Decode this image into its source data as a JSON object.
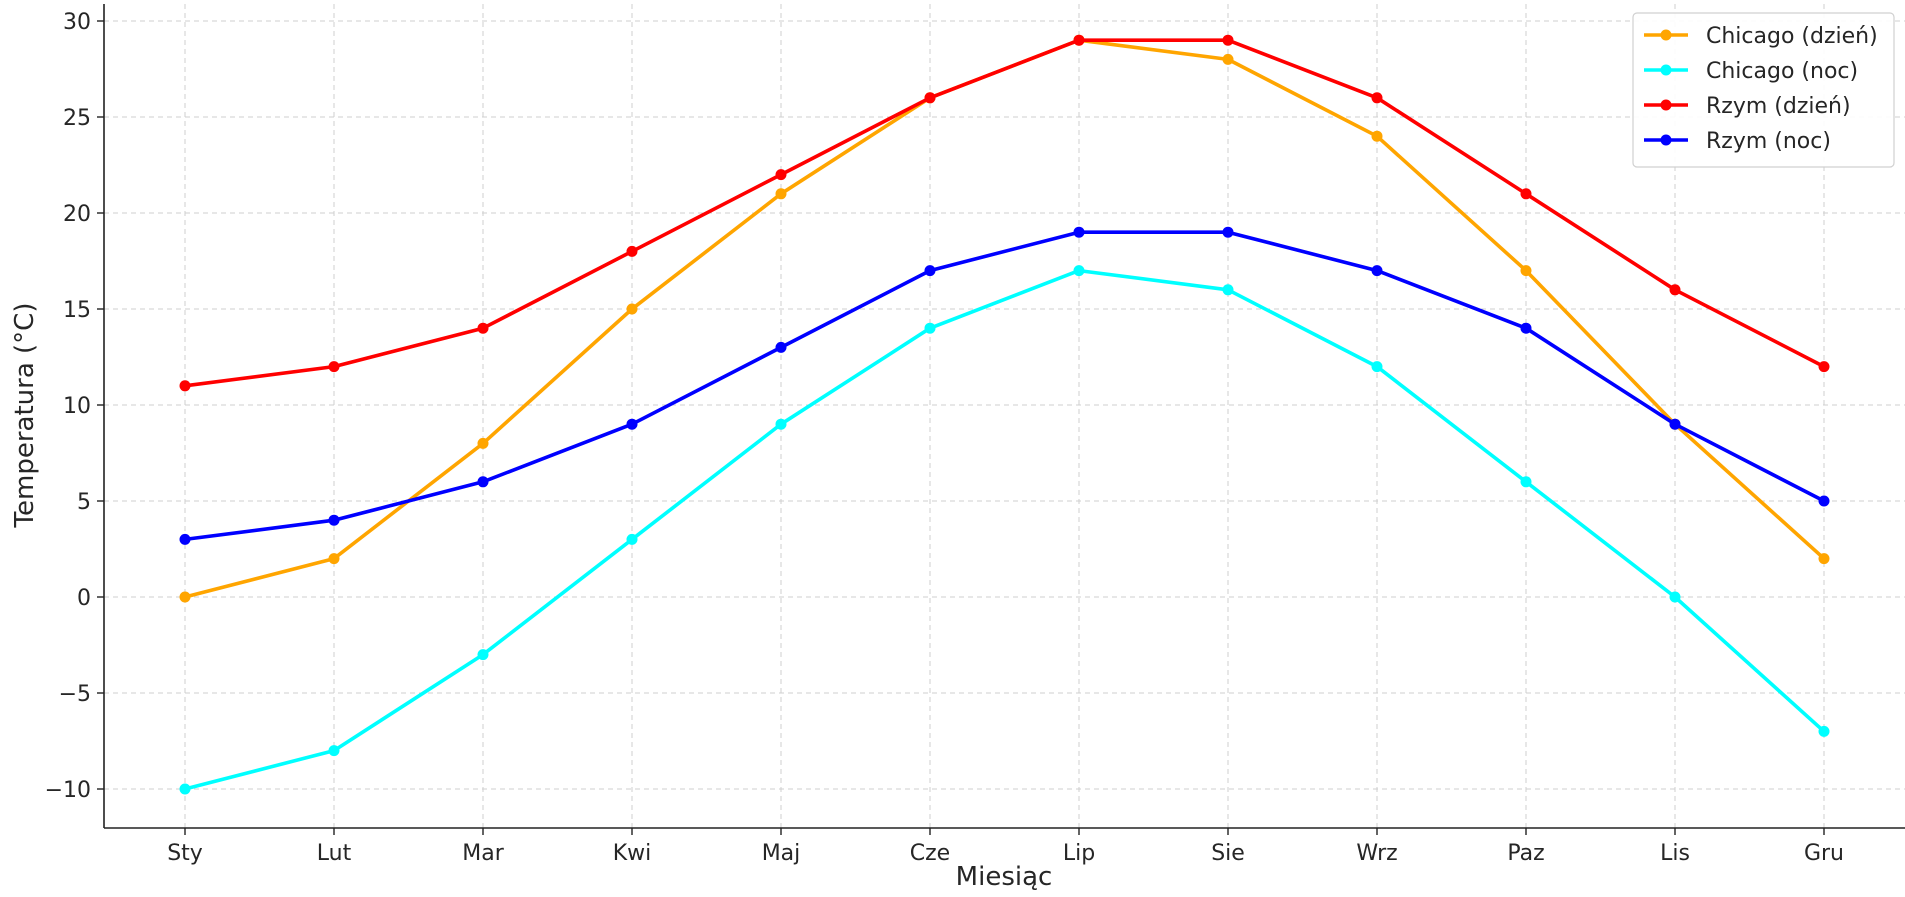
{
  "chart_data": {
    "type": "line",
    "title": "",
    "xlabel": "Miesiąc",
    "ylabel": "Temperatura (°C)",
    "categories": [
      "Sty",
      "Lut",
      "Mar",
      "Kwi",
      "Maj",
      "Cze",
      "Lip",
      "Sie",
      "Wrz",
      "Paz",
      "Lis",
      "Gru"
    ],
    "ylim": [
      -12,
      31
    ],
    "yticks": [
      -10,
      -5,
      0,
      5,
      10,
      15,
      20,
      25,
      30
    ],
    "ytick_labels": [
      "−10",
      "−5",
      "0",
      "5",
      "10",
      "15",
      "20",
      "25",
      "30"
    ],
    "grid": true,
    "legend_position": "top-right",
    "series": [
      {
        "name": "Chicago (dzień)",
        "color": "#ffa500",
        "values": [
          0,
          2,
          8,
          15,
          21,
          26,
          29,
          28,
          24,
          17,
          9,
          2
        ]
      },
      {
        "name": "Chicago (noc)",
        "color": "#00ffff",
        "values": [
          -10,
          -8,
          -3,
          3,
          9,
          14,
          17,
          16,
          12,
          6,
          0,
          -7
        ]
      },
      {
        "name": "Rzym (dzień)",
        "color": "#ff0000",
        "values": [
          11,
          12,
          14,
          18,
          22,
          26,
          29,
          29,
          26,
          21,
          16,
          12
        ]
      },
      {
        "name": "Rzym (noc)",
        "color": "#0000ff",
        "values": [
          3,
          4,
          6,
          9,
          13,
          17,
          19,
          19,
          17,
          14,
          9,
          5
        ]
      }
    ]
  }
}
